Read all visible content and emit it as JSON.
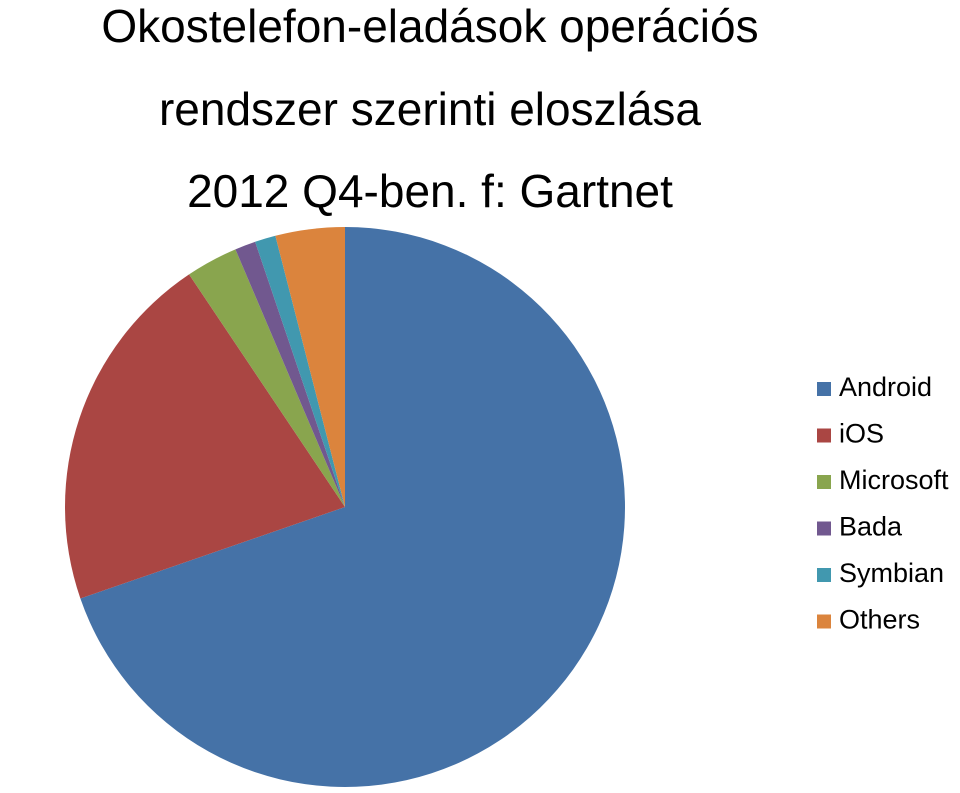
{
  "chart_data": {
    "type": "pie",
    "title": [
      "Okostelefon-eladások operációs",
      "rendszer szerinti eloszlása",
      "2012 Q4-ben. f: Gartnet"
    ],
    "categories": [
      "Android",
      "iOS",
      "Microsoft",
      "Bada",
      "Symbian",
      "Others"
    ],
    "values": [
      69.7,
      20.9,
      3.0,
      1.2,
      1.2,
      4.0
    ],
    "colors": [
      "#4572a7",
      "#aa4643",
      "#89a54e",
      "#71588f",
      "#4198af",
      "#db843d"
    ],
    "legend": "right"
  }
}
